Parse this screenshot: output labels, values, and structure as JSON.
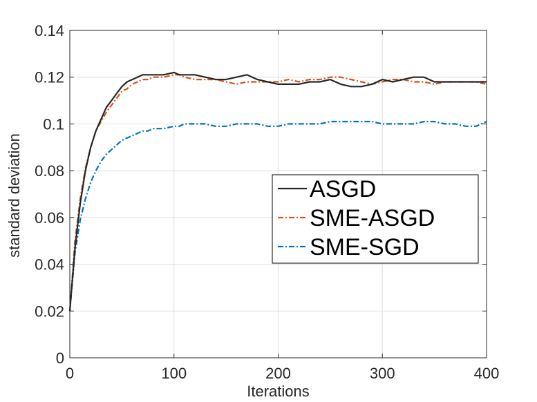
{
  "chart_data": {
    "type": "line",
    "title": "",
    "xlabel": "Iterations",
    "ylabel": "standard deviation",
    "xlim": [
      0,
      400
    ],
    "ylim": [
      0,
      0.14
    ],
    "xticks": [
      0,
      100,
      200,
      300,
      400
    ],
    "yticks": [
      0,
      0.02,
      0.04,
      0.06,
      0.08,
      0.1,
      0.12,
      0.14
    ],
    "xtick_labels": [
      "0",
      "100",
      "200",
      "300",
      "400"
    ],
    "ytick_labels": [
      "0",
      "0.02",
      "0.04",
      "0.06",
      "0.08",
      "0.1",
      "0.12",
      "0.14"
    ],
    "grid": true,
    "legend_position": "center-right",
    "series": [
      {
        "name": "ASGD",
        "color": "#262626",
        "style": "solid",
        "x": [
          0,
          5,
          10,
          15,
          20,
          25,
          30,
          35,
          40,
          45,
          50,
          55,
          60,
          65,
          70,
          75,
          80,
          90,
          100,
          105,
          110,
          120,
          130,
          140,
          150,
          160,
          170,
          180,
          190,
          200,
          210,
          220,
          230,
          240,
          250,
          260,
          270,
          280,
          290,
          300,
          310,
          320,
          330,
          340,
          350,
          360,
          370,
          380,
          390,
          400
        ],
        "y": [
          0.02,
          0.047,
          0.066,
          0.08,
          0.09,
          0.097,
          0.102,
          0.107,
          0.11,
          0.113,
          0.116,
          0.118,
          0.119,
          0.12,
          0.121,
          0.121,
          0.121,
          0.121,
          0.122,
          0.121,
          0.121,
          0.121,
          0.12,
          0.119,
          0.119,
          0.12,
          0.121,
          0.119,
          0.118,
          0.117,
          0.117,
          0.117,
          0.118,
          0.118,
          0.119,
          0.117,
          0.116,
          0.116,
          0.117,
          0.119,
          0.118,
          0.119,
          0.12,
          0.12,
          0.118,
          0.118,
          0.118,
          0.118,
          0.118,
          0.118
        ]
      },
      {
        "name": "SME-ASGD",
        "color": "#d95319",
        "style": "dashdot",
        "x": [
          0,
          5,
          10,
          15,
          20,
          25,
          30,
          35,
          40,
          45,
          50,
          55,
          60,
          65,
          70,
          75,
          80,
          90,
          100,
          105,
          110,
          120,
          130,
          140,
          150,
          160,
          170,
          180,
          190,
          200,
          210,
          220,
          230,
          240,
          250,
          260,
          270,
          280,
          290,
          300,
          310,
          320,
          330,
          340,
          350,
          360,
          370,
          380,
          390,
          400
        ],
        "y": [
          0.02,
          0.05,
          0.068,
          0.081,
          0.09,
          0.097,
          0.101,
          0.105,
          0.108,
          0.111,
          0.114,
          0.115,
          0.117,
          0.118,
          0.119,
          0.119,
          0.12,
          0.12,
          0.121,
          0.121,
          0.12,
          0.119,
          0.119,
          0.119,
          0.118,
          0.117,
          0.118,
          0.118,
          0.118,
          0.118,
          0.119,
          0.118,
          0.119,
          0.119,
          0.12,
          0.12,
          0.119,
          0.118,
          0.117,
          0.118,
          0.119,
          0.119,
          0.118,
          0.118,
          0.117,
          0.118,
          0.118,
          0.118,
          0.118,
          0.117
        ]
      },
      {
        "name": "SME-SGD",
        "color": "#0072bd",
        "style": "dashdot",
        "x": [
          0,
          5,
          10,
          15,
          20,
          25,
          30,
          35,
          40,
          45,
          50,
          55,
          60,
          65,
          70,
          75,
          80,
          90,
          100,
          105,
          110,
          120,
          130,
          140,
          150,
          160,
          170,
          180,
          190,
          200,
          210,
          220,
          230,
          240,
          250,
          260,
          270,
          280,
          290,
          300,
          310,
          320,
          330,
          340,
          350,
          360,
          370,
          380,
          390,
          400
        ],
        "y": [
          0.02,
          0.045,
          0.059,
          0.068,
          0.075,
          0.08,
          0.084,
          0.087,
          0.089,
          0.091,
          0.093,
          0.094,
          0.095,
          0.096,
          0.097,
          0.097,
          0.098,
          0.098,
          0.099,
          0.099,
          0.1,
          0.1,
          0.1,
          0.099,
          0.099,
          0.1,
          0.1,
          0.1,
          0.099,
          0.099,
          0.1,
          0.1,
          0.1,
          0.1,
          0.101,
          0.101,
          0.101,
          0.101,
          0.101,
          0.1,
          0.1,
          0.1,
          0.1,
          0.101,
          0.101,
          0.1,
          0.1,
          0.099,
          0.099,
          0.101
        ]
      }
    ]
  }
}
